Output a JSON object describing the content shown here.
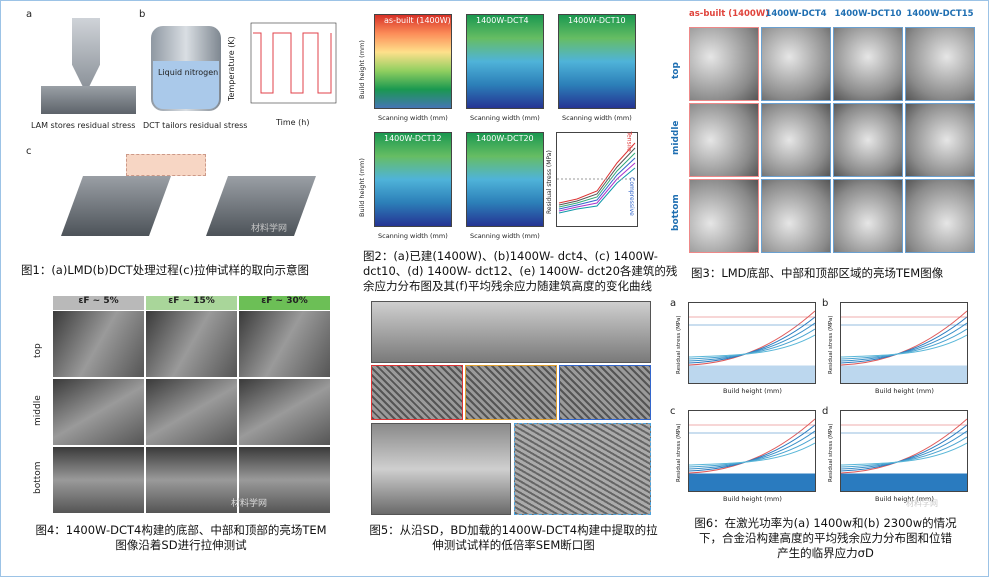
{
  "fig1": {
    "caption": "图1：(a)LMD(b)DCT处理过程(c)拉伸试样的取向示意图",
    "letters": [
      "a",
      "b",
      "c"
    ],
    "lam": "LAM stores residual stress",
    "dct": "DCT tailors residual stress",
    "ln2": "Liquid nitrogen",
    "ylabel": "Temperature (K)",
    "xlabel": "Time (h)"
  },
  "fig2": {
    "caption": [
      "图2：(a)已建(1400W)、(b)1400W- dct4、(c) 1400W-",
      "dct10、(d) 1400W- dct12、(e) 1400W- dct20各建筑的残",
      "余应力分布图及其(f)平均残余应力随建筑高度的变化曲线"
    ],
    "panels": [
      "as-built (1400W)",
      "1400W-DCT4",
      "1400W-DCT10",
      "1400W-DCT12",
      "1400W-DCT20"
    ],
    "ylabel": "Build height (mm)",
    "xlabel": "Scanning width (mm)",
    "f_ylabel": "Residual stress (MPa)",
    "tensile": "Tensile",
    "compressive": "Compressive"
  },
  "fig3": {
    "caption": "图3：LMD底部、中部和顶部区域的亮场TEM图像",
    "columns": [
      "as-built (1400W)",
      "1400W-DCT4",
      "1400W-DCT10",
      "1400W-DCT15"
    ],
    "rows": [
      "top",
      "middle",
      "bottom"
    ]
  },
  "fig4": {
    "caption": [
      "图4：1400W-DCT4构建的底部、中部和顶部的亮场TEM",
      "图像沿着SD进行拉伸测试"
    ],
    "columns": [
      "εF ~ 5%",
      "εF ~ 15%",
      "εF ~ 30%"
    ],
    "rows": [
      "top",
      "middle",
      "bottom"
    ]
  },
  "fig5": {
    "caption": [
      "图5：从沿SD，BD加载的1400W-DCT4构建中提取的拉",
      "伸测试试样的低倍率SEM断口图"
    ]
  },
  "fig6": {
    "caption": [
      "图6：在激光功率为(a) 1400w和(b) 2300w的情况",
      "下，合金沿构建高度的平均残余应力分布图和位错",
      "产生的临界应力σD"
    ],
    "panels": [
      "a",
      "b",
      "c",
      "d"
    ],
    "xlabel": "Build height (mm)",
    "ylabel": "Residual stress (MPa)"
  },
  "watermark": "材料学网"
}
